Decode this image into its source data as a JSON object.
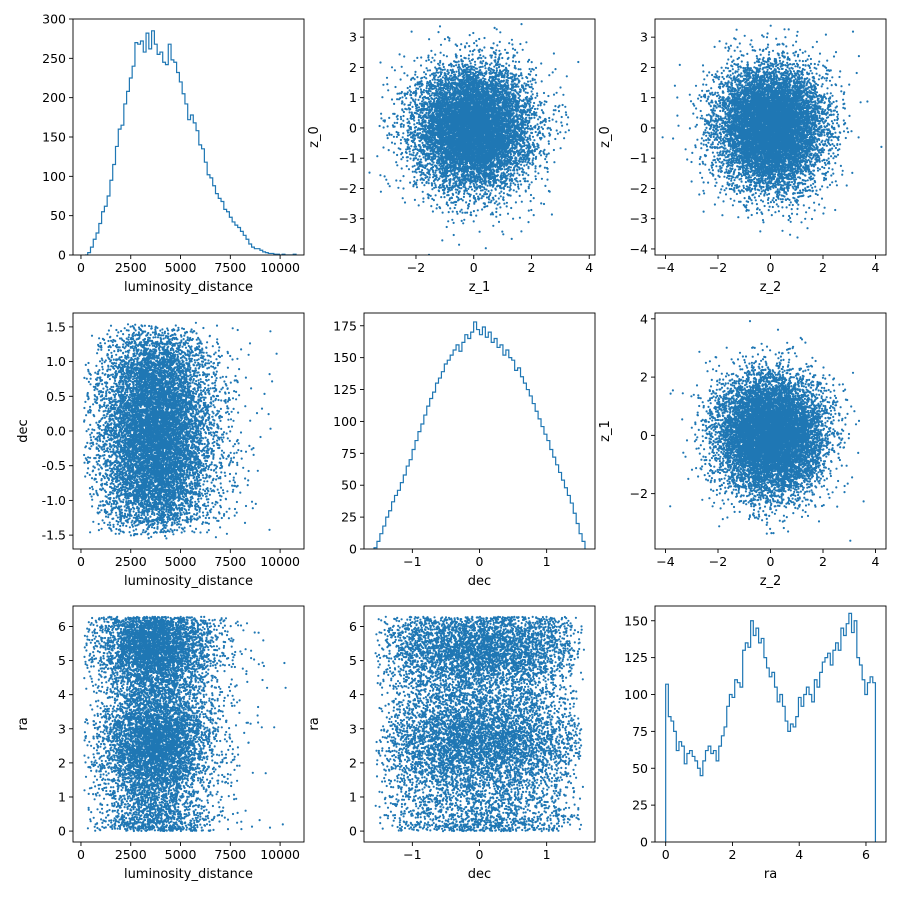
{
  "colors": {
    "series": "#1f77b4",
    "axis": "#000000",
    "background": "#ffffff"
  },
  "chart_data": [
    {
      "id": "hist-luminosity-distance",
      "type": "histogram-step",
      "xlabel": "luminosity_distance",
      "ylabel": "",
      "xlim": [
        -400,
        11200
      ],
      "ylim": [
        0,
        300
      ],
      "xticks": [
        0,
        2500,
        5000,
        7500,
        10000
      ],
      "yticks": [
        0,
        50,
        100,
        150,
        200,
        250,
        300
      ],
      "bins_x": [
        200,
        10800
      ],
      "bins_y": [
        0,
        3,
        10,
        20,
        28,
        40,
        55,
        62,
        75,
        95,
        115,
        138,
        160,
        165,
        192,
        208,
        225,
        240,
        270,
        268,
        272,
        258,
        282,
        262,
        285,
        268,
        255,
        258,
        245,
        242,
        268,
        248,
        245,
        232,
        220,
        205,
        192,
        172,
        178,
        168,
        158,
        140,
        135,
        118,
        102,
        98,
        88,
        78,
        72,
        68,
        58,
        55,
        48,
        42,
        38,
        35,
        30,
        25,
        20,
        14,
        10,
        8,
        8,
        6,
        4,
        3,
        2,
        2,
        1,
        1,
        0,
        1,
        0,
        0,
        0,
        1
      ]
    },
    {
      "id": "scatter-z1-z0",
      "type": "scatter",
      "xlabel": "z_1",
      "ylabel": "z_0",
      "xlim": [
        -3.8,
        4.2
      ],
      "ylim": [
        -4.2,
        3.6
      ],
      "xticks": [
        -2,
        0,
        2,
        4
      ],
      "yticks": [
        -4,
        -3,
        -2,
        -1,
        0,
        1,
        2,
        3
      ],
      "distribution": {
        "kind": "gaussian",
        "x_center": 0,
        "x_spread": 1,
        "y_center": 0,
        "y_spread": 1,
        "points": 10000
      }
    },
    {
      "id": "scatter-z2-z0",
      "type": "scatter",
      "xlabel": "z_2",
      "ylabel": "z_0",
      "xlim": [
        -4.4,
        4.4
      ],
      "ylim": [
        -4.2,
        3.6
      ],
      "xticks": [
        -4,
        -2,
        0,
        2,
        4
      ],
      "yticks": [
        -4,
        -3,
        -2,
        -1,
        0,
        1,
        2,
        3
      ],
      "distribution": {
        "kind": "gaussian",
        "x_center": 0,
        "x_spread": 1,
        "y_center": 0,
        "y_spread": 1,
        "points": 10000
      }
    },
    {
      "id": "scatter-ld-dec",
      "type": "scatter",
      "xlabel": "luminosity_distance",
      "ylabel": "dec",
      "xlim": [
        -400,
        11200
      ],
      "ylim": [
        -1.7,
        1.7
      ],
      "xticks": [
        0,
        2500,
        5000,
        7500,
        10000
      ],
      "yticks": [
        -1.5,
        -1.0,
        -0.5,
        0.0,
        0.5,
        1.0,
        1.5
      ],
      "tick_format_y": "1",
      "distribution": {
        "kind": "ld-dec",
        "points": 10000
      }
    },
    {
      "id": "hist-dec",
      "type": "histogram-step",
      "xlabel": "dec",
      "ylabel": "",
      "xlim": [
        -1.72,
        1.72
      ],
      "ylim": [
        0,
        185
      ],
      "xticks": [
        -1,
        0,
        1
      ],
      "yticks": [
        0,
        25,
        50,
        75,
        100,
        125,
        150,
        175
      ],
      "bins_x": [
        -1.5708,
        1.5708
      ],
      "bins_y": [
        1,
        6,
        12,
        18,
        25,
        30,
        37,
        42,
        46,
        52,
        58,
        65,
        70,
        78,
        85,
        92,
        98,
        105,
        112,
        118,
        123,
        130,
        134,
        139,
        145,
        148,
        152,
        156,
        160,
        155,
        162,
        168,
        165,
        170,
        178,
        172,
        168,
        174,
        166,
        170,
        162,
        165,
        158,
        160,
        152,
        156,
        150,
        148,
        140,
        142,
        135,
        130,
        125,
        120,
        114,
        108,
        102,
        96,
        90,
        85,
        78,
        72,
        66,
        60,
        54,
        48,
        42,
        36,
        28,
        20,
        12,
        6
      ]
    },
    {
      "id": "scatter-z2-z1",
      "type": "scatter",
      "xlabel": "z_2",
      "ylabel": "z_1",
      "xlim": [
        -4.4,
        4.4
      ],
      "ylim": [
        -3.9,
        4.2
      ],
      "xticks": [
        -4,
        -2,
        0,
        2,
        4
      ],
      "yticks": [
        -2,
        0,
        2,
        4
      ],
      "distribution": {
        "kind": "gaussian",
        "x_center": 0,
        "x_spread": 1,
        "y_center": 0,
        "y_spread": 1,
        "points": 10000
      }
    },
    {
      "id": "scatter-ld-ra",
      "type": "scatter",
      "xlabel": "luminosity_distance",
      "ylabel": "ra",
      "xlim": [
        -400,
        11200
      ],
      "ylim": [
        -0.32,
        6.6
      ],
      "xticks": [
        0,
        2500,
        5000,
        7500,
        10000
      ],
      "yticks": [
        0,
        1,
        2,
        3,
        4,
        5,
        6
      ],
      "distribution": {
        "kind": "ld-ra",
        "points": 10000
      }
    },
    {
      "id": "scatter-dec-ra",
      "type": "scatter",
      "xlabel": "dec",
      "ylabel": "ra",
      "xlim": [
        -1.72,
        1.72
      ],
      "ylim": [
        -0.32,
        6.6
      ],
      "xticks": [
        -1,
        0,
        1
      ],
      "yticks": [
        0,
        1,
        2,
        3,
        4,
        5,
        6
      ],
      "distribution": {
        "kind": "dec-ra",
        "points": 10000
      }
    },
    {
      "id": "hist-ra",
      "type": "histogram-step",
      "xlabel": "ra",
      "ylabel": "",
      "xlim": [
        -0.32,
        6.6
      ],
      "ylim": [
        0,
        160
      ],
      "xticks": [
        0,
        2,
        4,
        6
      ],
      "yticks": [
        0,
        25,
        50,
        75,
        100,
        125,
        150
      ],
      "bins_x": [
        0,
        6.2832
      ],
      "bins_y": [
        107,
        85,
        82,
        75,
        62,
        68,
        65,
        53,
        60,
        62,
        58,
        55,
        50,
        45,
        55,
        62,
        65,
        60,
        62,
        55,
        65,
        72,
        78,
        92,
        100,
        98,
        110,
        108,
        105,
        130,
        135,
        132,
        150,
        140,
        145,
        135,
        138,
        125,
        118,
        112,
        115,
        105,
        95,
        100,
        92,
        82,
        75,
        80,
        78,
        85,
        98,
        92,
        100,
        105,
        100,
        95,
        110,
        105,
        115,
        122,
        125,
        128,
        120,
        130,
        135,
        130,
        145,
        140,
        148,
        155,
        142,
        150,
        125,
        120,
        110,
        100,
        108,
        112,
        108
      ]
    }
  ]
}
